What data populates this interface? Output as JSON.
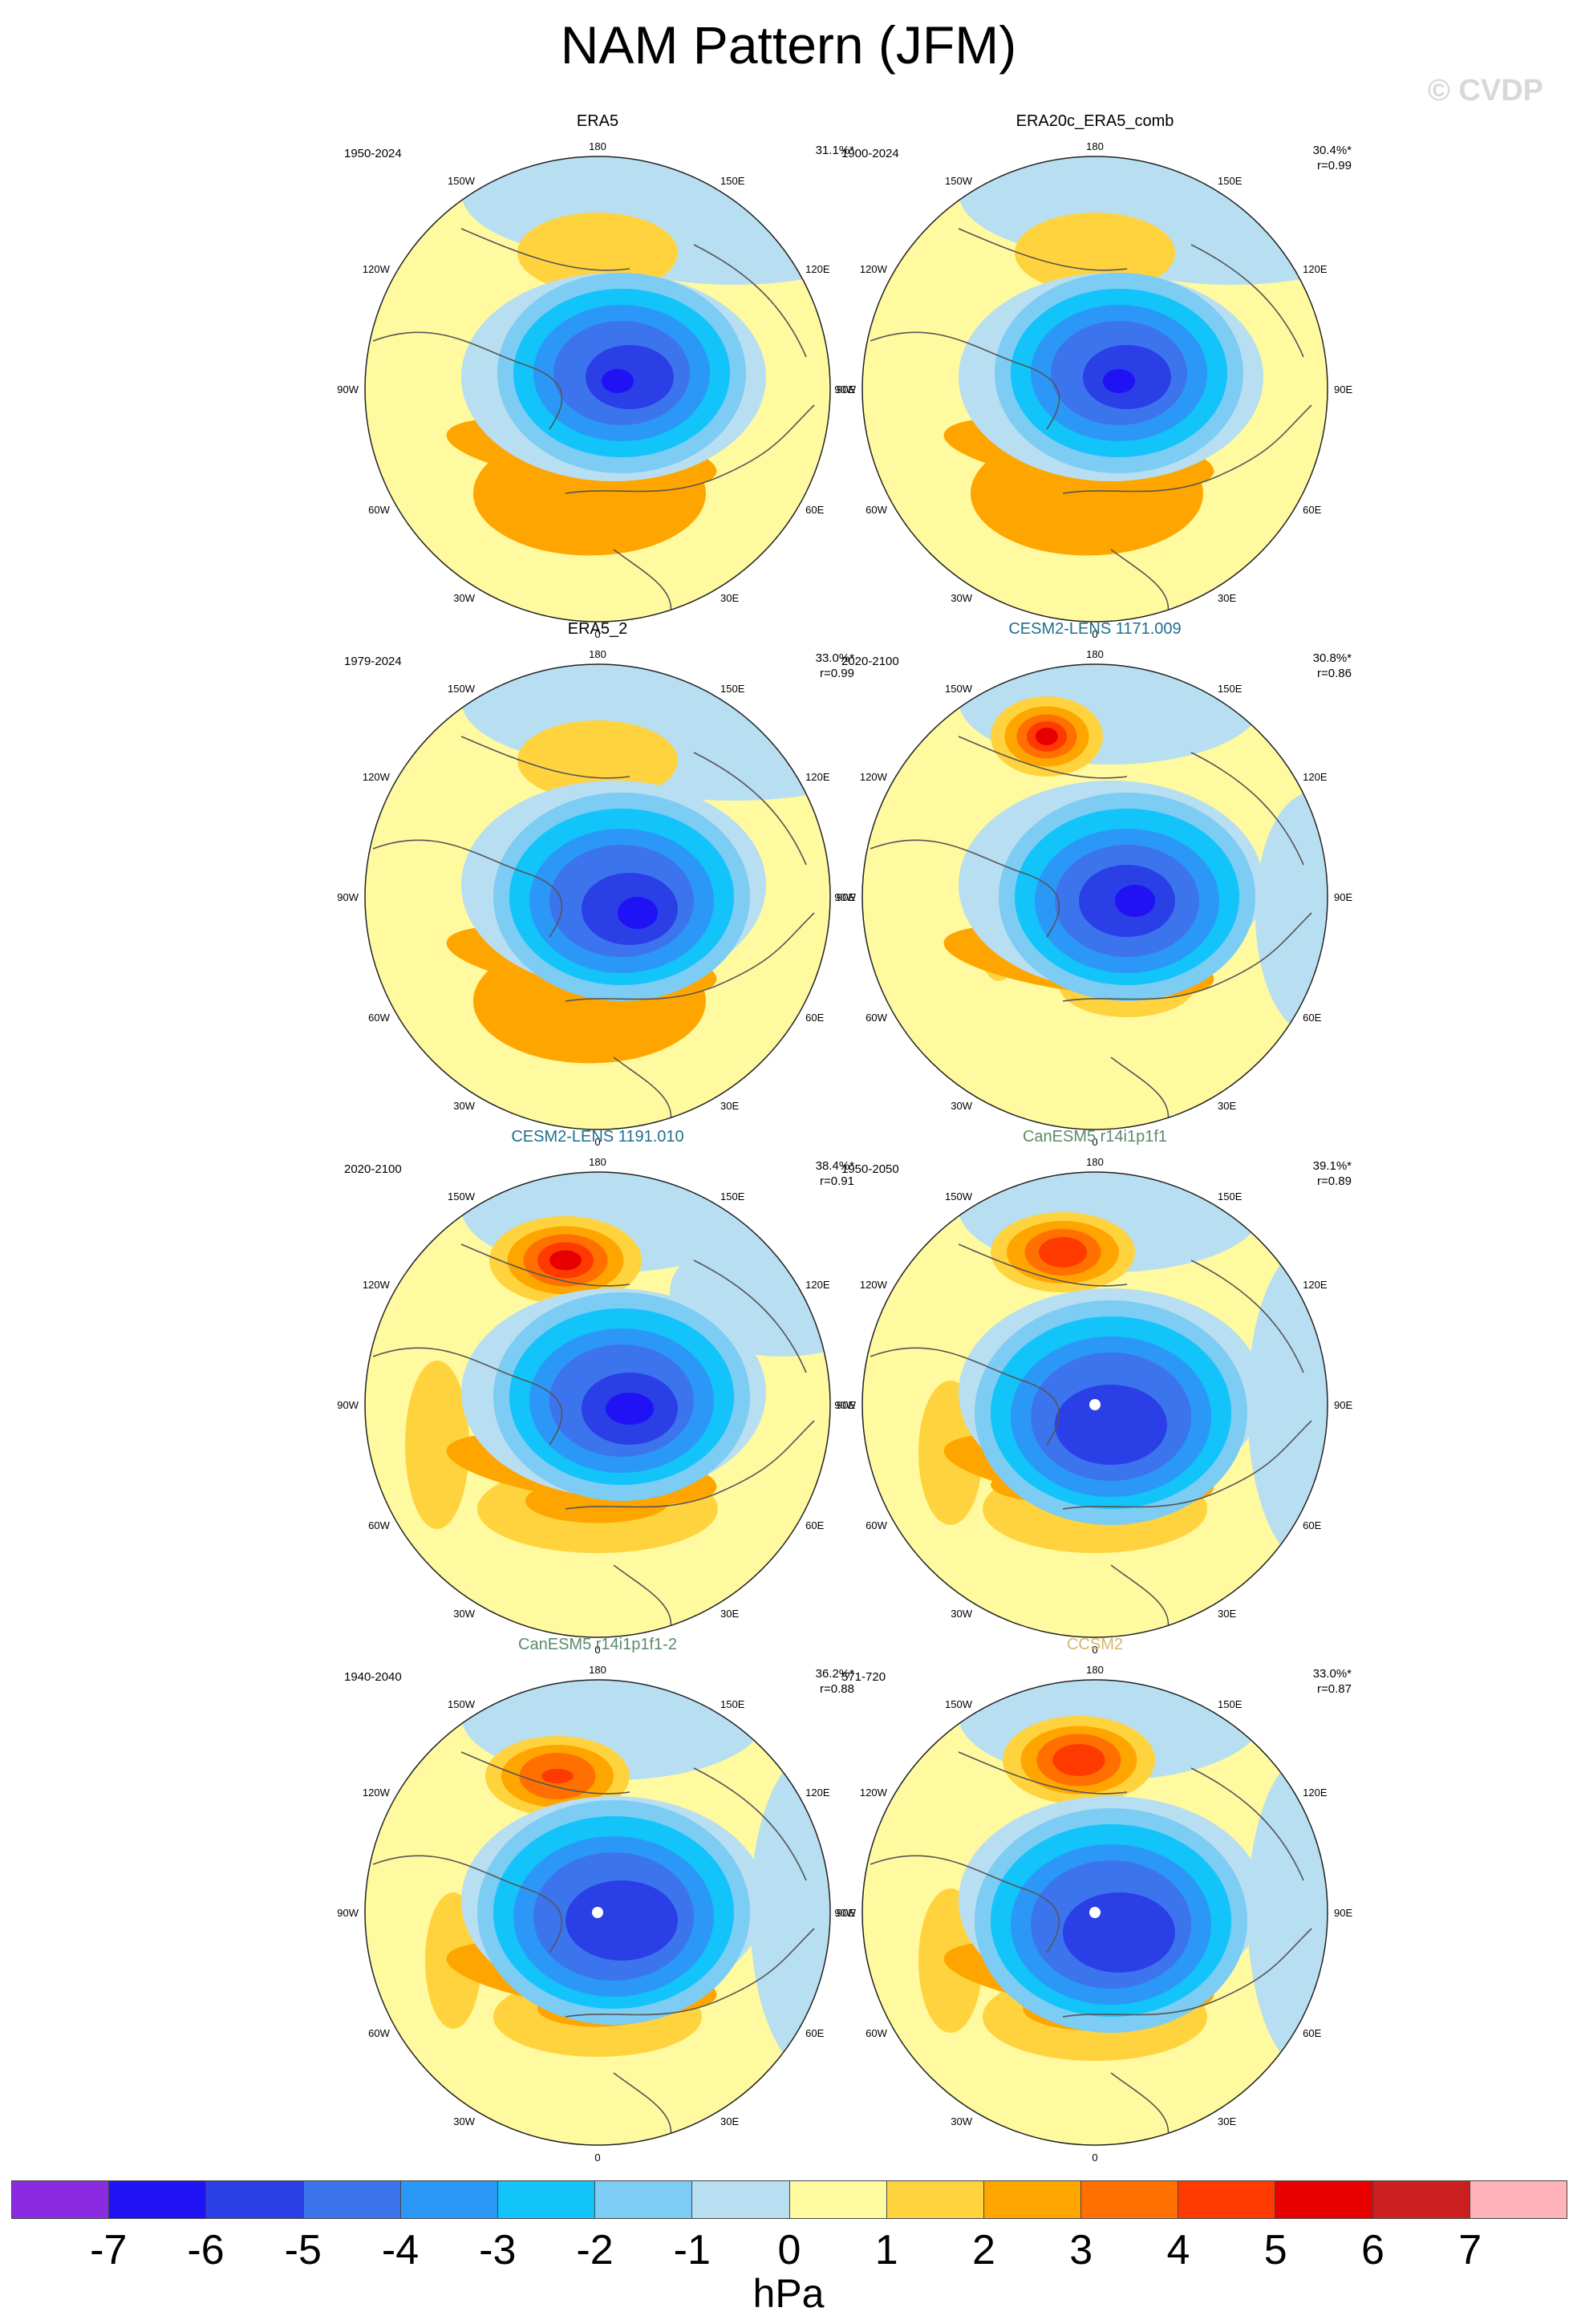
{
  "title": "NAM Pattern (JFM)",
  "watermark": "© CVDP",
  "unit": "hPa",
  "colorbar": {
    "colors": [
      "#8a2be2",
      "#1f12f5",
      "#2a3fe6",
      "#3c74ee",
      "#2b98f7",
      "#12c4f9",
      "#7cccf3",
      "#b8def2",
      "#fffaa0",
      "#ffd33d",
      "#ffa500",
      "#ff7000",
      "#ff3a00",
      "#e80000",
      "#cc1f1f",
      "#ffb3b8"
    ],
    "ticks": [
      "-7",
      "-6",
      "-5",
      "-4",
      "-3",
      "-2",
      "-1",
      "0",
      "1",
      "2",
      "3",
      "4",
      "5",
      "6",
      "7"
    ]
  },
  "lon_labels": {
    "top": "180",
    "bottom": "0",
    "left": "90W",
    "right": "90E",
    "ul1": "150W",
    "ul2": "120W",
    "ur1": "150E",
    "ur2": "120E",
    "ll1": "60W",
    "ll2": "30W",
    "lr1": "60E",
    "lr2": "30E"
  },
  "panels": [
    {
      "title": "ERA5",
      "title_color": "#000000",
      "years": "1950-2024",
      "pct": "31.1%*",
      "corr": ""
    },
    {
      "title": "ERA20c_ERA5_comb",
      "title_color": "#000000",
      "years": "1900-2024",
      "pct": "30.4%*",
      "corr": "r=0.99"
    },
    {
      "title": "ERA5_2",
      "title_color": "#000000",
      "years": "1979-2024",
      "pct": "33.0%*",
      "corr": "r=0.99"
    },
    {
      "title": "CESM2-LENS 1171.009",
      "title_color": "#1f6f8b",
      "years": "2020-2100",
      "pct": "30.8%*",
      "corr": "r=0.86"
    },
    {
      "title": "CESM2-LENS 1191.010",
      "title_color": "#1f6f8b",
      "years": "2020-2100",
      "pct": "38.4%*",
      "corr": "r=0.91"
    },
    {
      "title": "CanESM5 r14i1p1f1",
      "title_color": "#5b8a6a",
      "years": "1950-2050",
      "pct": "39.1%*",
      "corr": "r=0.89"
    },
    {
      "title": "CanESM5 r14i1p1f1-2",
      "title_color": "#5b8a6a",
      "years": "1940-2040",
      "pct": "36.2%*",
      "corr": "r=0.88"
    },
    {
      "title": "CCSM2",
      "title_color": "#d4b86a",
      "years": "571-720",
      "pct": "33.0%*",
      "corr": "r=0.87"
    }
  ]
}
